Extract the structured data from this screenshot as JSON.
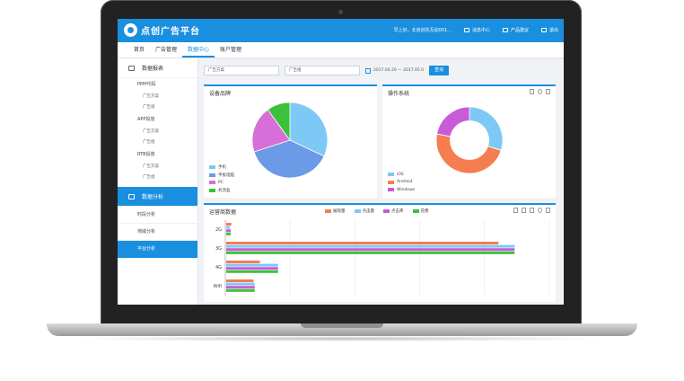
{
  "app": {
    "logo_text": "点创广告平台"
  },
  "topbar": {
    "greeting": "早上好，北京创先互动001...",
    "items": [
      {
        "label": "消息中心",
        "icon": "mail-icon"
      },
      {
        "label": "产品建议",
        "icon": "chat-icon"
      },
      {
        "label": "退出",
        "icon": "logout-icon"
      }
    ]
  },
  "nav": {
    "tabs": [
      "首页",
      "广告管理",
      "数据中心",
      "账户管理"
    ],
    "active": "数据中心"
  },
  "sidebar": {
    "section1": "数据报表",
    "groups": [
      {
        "label": "PMP代码",
        "items": [
          "广告方案",
          "广告组"
        ]
      },
      {
        "label": "APP投放",
        "items": [
          "广告方案",
          "广告组"
        ]
      },
      {
        "label": "RTB投放",
        "items": [
          "广告方案",
          "广告组"
        ]
      }
    ],
    "section2": "数据分析",
    "analysis": [
      "时段分析",
      "地域分析",
      "平台分析"
    ],
    "active_analysis": "平台分析"
  },
  "filter": {
    "plan_placeholder": "广告方案",
    "group_placeholder": "广告组",
    "date_range": "2017.04.20 — 2017.05.0",
    "query_label": "查询"
  },
  "panels": {
    "device": {
      "title": "设备品牌"
    },
    "os": {
      "title": "操作系统"
    },
    "carrier": {
      "title": "运营商数据"
    }
  },
  "chart_data": [
    {
      "type": "pie",
      "title": "设备品牌",
      "labels": [
        "手机",
        "平板电脑",
        "PC",
        "机顶盒"
      ],
      "values": [
        32,
        38,
        20,
        10
      ],
      "colors": [
        "#7ec8f6",
        "#6b9ae6",
        "#d86ed8",
        "#3ac33a"
      ]
    },
    {
      "type": "pie",
      "title": "操作系统",
      "labels": [
        "iOS",
        "Android",
        "Windows"
      ],
      "values": [
        30,
        48,
        22
      ],
      "colors": [
        "#7ec8f6",
        "#f57d4f",
        "#c95bd8"
      ]
    },
    {
      "type": "bar",
      "title": "运营商数据",
      "categories": [
        "2G",
        "3G",
        "4G",
        "Wifi"
      ],
      "series": [
        {
          "name": "展现量",
          "color": "#f57d4f",
          "values": [
            8,
            420,
            52,
            42
          ]
        },
        {
          "name": "点击量",
          "color": "#7ec8f6",
          "values": [
            6,
            445,
            80,
            44
          ]
        },
        {
          "name": "点击率",
          "color": "#c95bd8",
          "values": [
            7,
            445,
            80,
            44
          ]
        },
        {
          "name": "花费",
          "color": "#3ac33a",
          "values": [
            7,
            445,
            80,
            44
          ]
        }
      ],
      "xlim": [
        0,
        500
      ]
    }
  ]
}
